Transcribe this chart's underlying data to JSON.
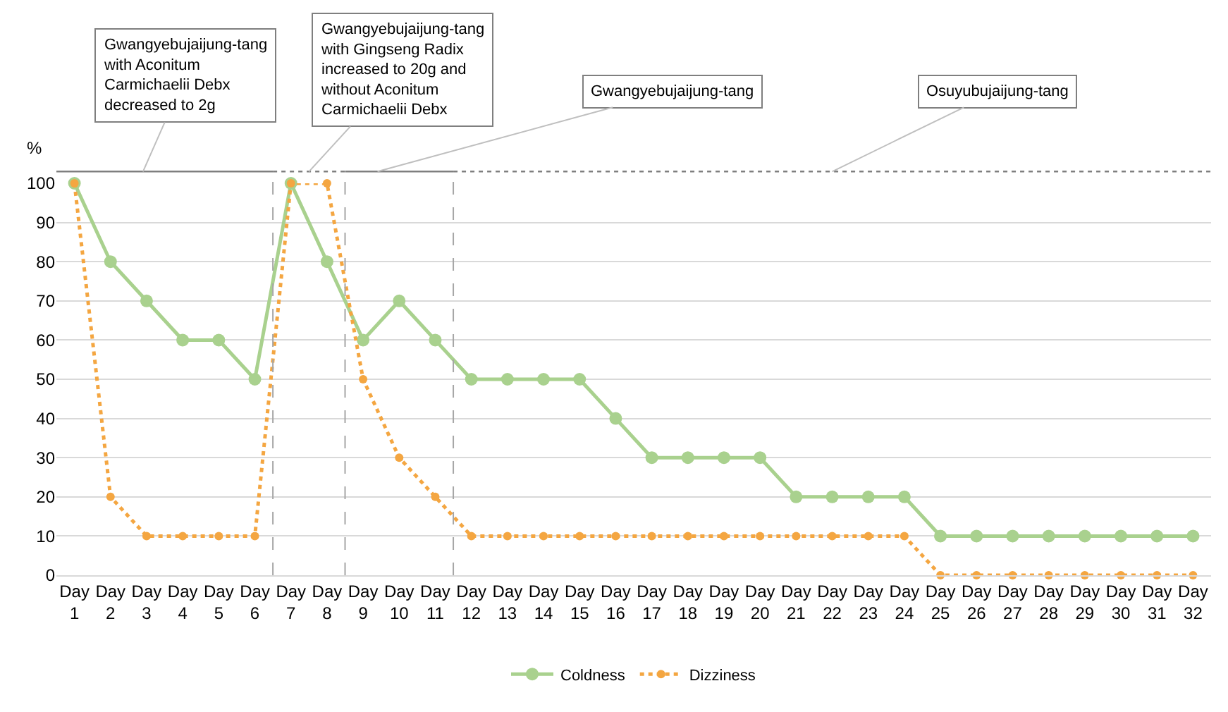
{
  "chart_data": {
    "type": "line",
    "categories": [
      "Day 1",
      "Day 2",
      "Day 3",
      "Day 4",
      "Day 5",
      "Day 6",
      "Day 7",
      "Day 8",
      "Day 9",
      "Day 10",
      "Day 11",
      "Day 12",
      "Day 13",
      "Day 14",
      "Day 15",
      "Day 16",
      "Day 17",
      "Day 18",
      "Day 19",
      "Day 20",
      "Day 21",
      "Day 22",
      "Day 23",
      "Day 24",
      "Day 25",
      "Day 26",
      "Day 27",
      "Day 28",
      "Day 29",
      "Day 30",
      "Day 31",
      "Day 32"
    ],
    "ylabel": "%",
    "ylim": [
      0,
      100
    ],
    "yticks": [
      0,
      10,
      20,
      30,
      40,
      50,
      60,
      70,
      80,
      90,
      100
    ],
    "series": [
      {
        "name": "Coldness",
        "color": "#a9d18e",
        "line_style": "solid",
        "values": [
          100,
          80,
          70,
          60,
          60,
          50,
          100,
          80,
          60,
          70,
          60,
          50,
          50,
          50,
          50,
          40,
          30,
          30,
          30,
          30,
          20,
          20,
          20,
          20,
          10,
          10,
          10,
          10,
          10,
          10,
          10,
          10
        ]
      },
      {
        "name": "Dizziness",
        "color": "#f4a641",
        "line_style": "dotted",
        "values": [
          100,
          20,
          10,
          10,
          10,
          10,
          100,
          100,
          50,
          30,
          20,
          10,
          10,
          10,
          10,
          10,
          10,
          10,
          10,
          10,
          10,
          10,
          10,
          10,
          0,
          0,
          0,
          0,
          0,
          0,
          0,
          0
        ]
      }
    ],
    "marker": "circle",
    "grid": "y",
    "legend": "bottom",
    "annotations": [
      "Gwangyebujaijung-tang with Aconitum Carmichaelii Debx decreased to 2g",
      "Gwangyebujaijung-tang with Gingseng Radix increased to 20g and without Aconitum Carmichaelii Debx",
      "Gwangyebujaijung-tang",
      "Osuyubujaijung-tang"
    ]
  }
}
